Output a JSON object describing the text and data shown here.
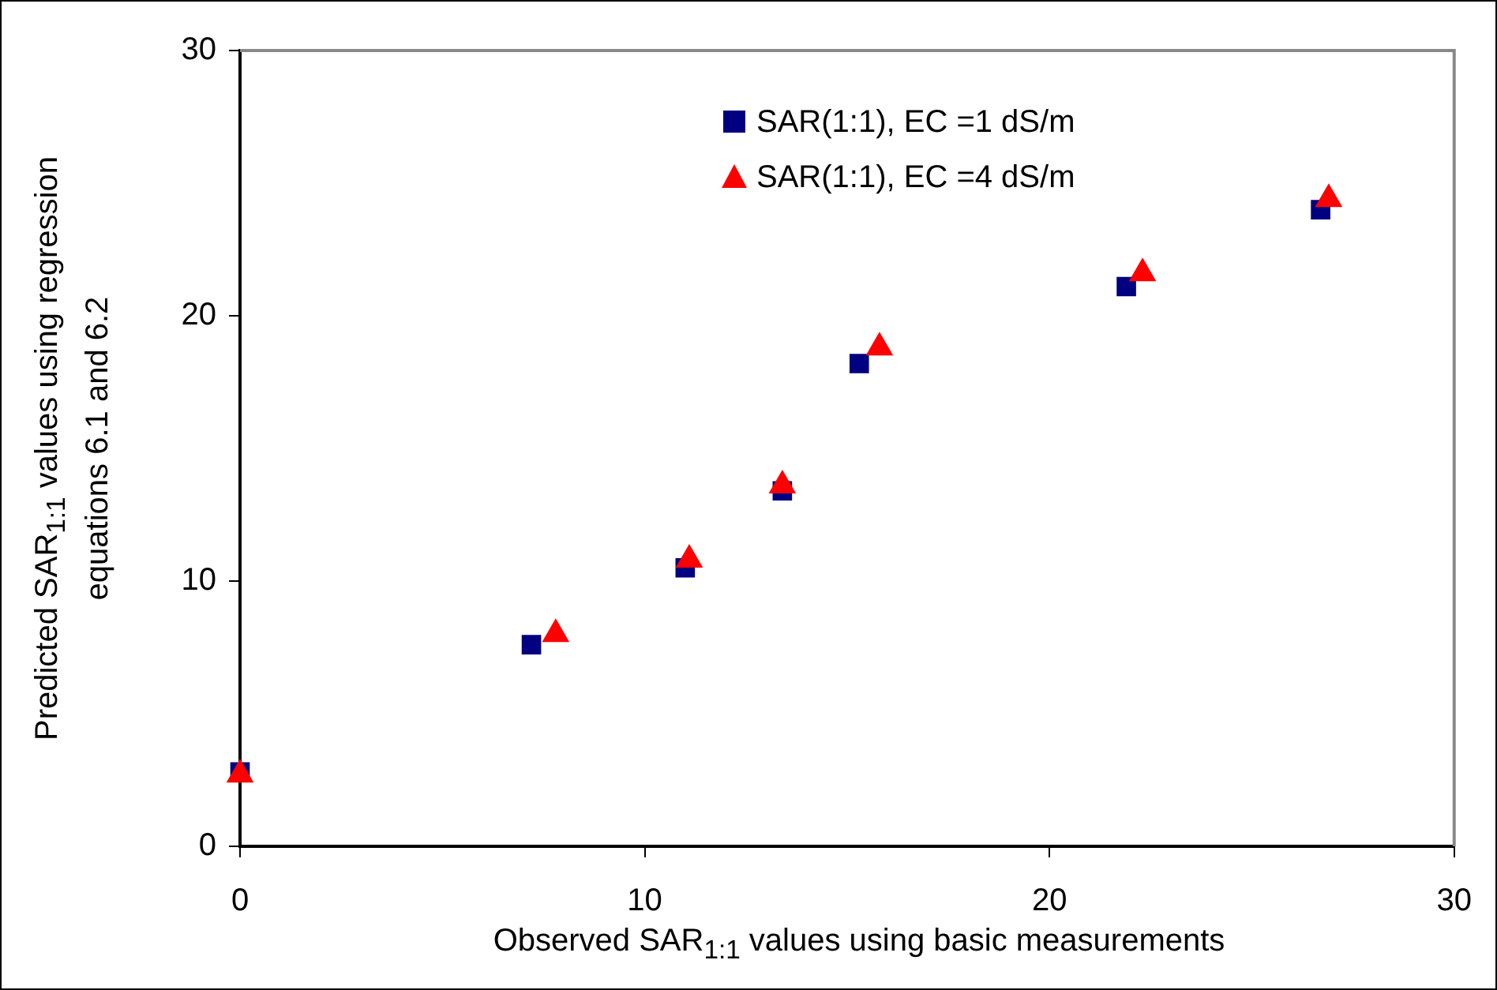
{
  "chart_data": {
    "type": "scatter",
    "xlabel": "Observed SAR$_{1:1}$ values using basic measurements",
    "ylabel": "Predicted SAR$_{1:1}$ values using regression equations 6.1 and 6.2",
    "xlim": [
      0,
      30
    ],
    "xticks": [
      0,
      10,
      20,
      30
    ],
    "ylim": [
      0,
      30
    ],
    "yticks": [
      0,
      10,
      20,
      30
    ],
    "legend": "top",
    "grid": false,
    "series": [
      {
        "name": "SAR(1:1), EC =1 dS/m",
        "color": "#000080",
        "marker": "square",
        "x": [
          0,
          7.2,
          11.0,
          13.4,
          15.3,
          21.9,
          26.7
        ],
        "values": [
          2.8,
          7.6,
          10.5,
          13.4,
          18.2,
          21.1,
          24.0
        ]
      },
      {
        "name": "SAR(1:1), EC =4 dS/m",
        "color": "#ff0000",
        "marker": "triangle",
        "x": [
          0,
          7.8,
          11.1,
          13.4,
          15.8,
          22.3,
          26.9
        ],
        "values": [
          2.7,
          8.0,
          10.8,
          13.6,
          18.8,
          21.6,
          24.4
        ]
      }
    ]
  }
}
